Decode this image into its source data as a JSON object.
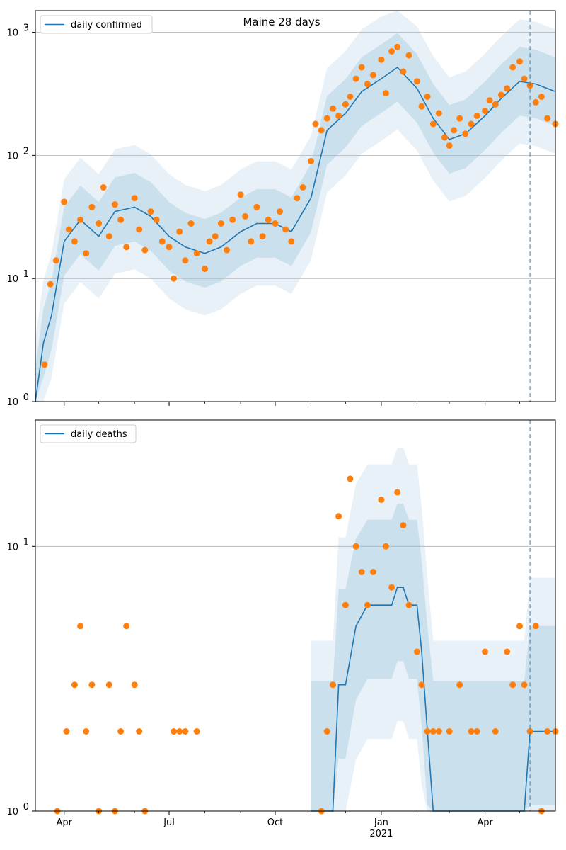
{
  "colors": {
    "line": "#1f77b4",
    "points": "#ff7f0e",
    "band": "#1f77b4",
    "grid": "#b0b0b0",
    "marker_line": "#1f77b4"
  },
  "title": "Maine 28 days",
  "chart_data": [
    {
      "type": "line",
      "yscale": "log",
      "ylim": [
        1,
        1500
      ],
      "x_range": [
        "2020-03-07",
        "2021-06-01"
      ],
      "y_ticks": [
        {
          "value": 1,
          "base": "10",
          "exp": "0"
        },
        {
          "value": 10,
          "base": "10",
          "exp": "1"
        },
        {
          "value": 100,
          "base": "10",
          "exp": "2"
        },
        {
          "value": 1000,
          "base": "10",
          "exp": "3"
        }
      ],
      "x_ticks": [],
      "grid": "y-major",
      "legend": {
        "label": "daily confirmed",
        "placement": "top-left"
      },
      "forecast_date": "2021-05-10",
      "series": [
        {
          "name": "daily confirmed",
          "kind": "line",
          "x": [
            "2020-03-07",
            "2020-03-14",
            "2020-03-21",
            "2020-04-01",
            "2020-04-15",
            "2020-05-01",
            "2020-05-15",
            "2020-06-01",
            "2020-06-15",
            "2020-07-01",
            "2020-07-15",
            "2020-08-01",
            "2020-08-15",
            "2020-09-01",
            "2020-09-15",
            "2020-10-01",
            "2020-10-15",
            "2020-11-01",
            "2020-11-15",
            "2020-12-01",
            "2020-12-15",
            "2021-01-01",
            "2021-01-15",
            "2021-02-01",
            "2021-02-15",
            "2021-03-01",
            "2021-03-15",
            "2021-04-01",
            "2021-04-15",
            "2021-05-01",
            "2021-05-15",
            "2021-06-01"
          ],
          "y": [
            1,
            3,
            5,
            20,
            30,
            22,
            35,
            38,
            32,
            22,
            18,
            16,
            18,
            24,
            28,
            28,
            24,
            45,
            160,
            220,
            330,
            420,
            520,
            350,
            200,
            135,
            150,
            210,
            290,
            400,
            380,
            330
          ]
        },
        {
          "name": "daily confirmed observed",
          "kind": "scatter",
          "x": [
            "2020-03-15",
            "2020-03-20",
            "2020-03-25",
            "2020-04-01",
            "2020-04-05",
            "2020-04-10",
            "2020-04-15",
            "2020-04-20",
            "2020-04-25",
            "2020-05-01",
            "2020-05-05",
            "2020-05-10",
            "2020-05-15",
            "2020-05-20",
            "2020-05-25",
            "2020-06-01",
            "2020-06-05",
            "2020-06-10",
            "2020-06-15",
            "2020-06-20",
            "2020-06-25",
            "2020-07-01",
            "2020-07-05",
            "2020-07-10",
            "2020-07-15",
            "2020-07-20",
            "2020-07-25",
            "2020-08-01",
            "2020-08-05",
            "2020-08-10",
            "2020-08-15",
            "2020-08-20",
            "2020-08-25",
            "2020-09-01",
            "2020-09-05",
            "2020-09-10",
            "2020-09-15",
            "2020-09-20",
            "2020-09-25",
            "2020-10-01",
            "2020-10-05",
            "2020-10-10",
            "2020-10-15",
            "2020-10-20",
            "2020-10-25",
            "2020-11-01",
            "2020-11-05",
            "2020-11-10",
            "2020-11-15",
            "2020-11-20",
            "2020-11-25",
            "2020-12-01",
            "2020-12-05",
            "2020-12-10",
            "2020-12-15",
            "2020-12-20",
            "2020-12-25",
            "2021-01-01",
            "2021-01-05",
            "2021-01-10",
            "2021-01-15",
            "2021-01-20",
            "2021-01-25",
            "2021-02-01",
            "2021-02-05",
            "2021-02-10",
            "2021-02-15",
            "2021-02-20",
            "2021-02-25",
            "2021-03-01",
            "2021-03-05",
            "2021-03-10",
            "2021-03-15",
            "2021-03-20",
            "2021-03-25",
            "2021-04-01",
            "2021-04-05",
            "2021-04-10",
            "2021-04-15",
            "2021-04-20",
            "2021-04-25",
            "2021-05-01",
            "2021-05-05",
            "2021-05-10",
            "2021-05-15",
            "2021-05-20",
            "2021-05-25",
            "2021-06-01"
          ],
          "y": [
            2,
            9,
            14,
            42,
            25,
            20,
            30,
            16,
            38,
            28,
            55,
            22,
            40,
            30,
            18,
            45,
            25,
            17,
            35,
            30,
            20,
            18,
            10,
            24,
            14,
            28,
            16,
            12,
            20,
            22,
            28,
            17,
            30,
            48,
            32,
            20,
            38,
            22,
            30,
            28,
            35,
            25,
            20,
            45,
            55,
            90,
            180,
            160,
            200,
            240,
            210,
            260,
            300,
            420,
            520,
            380,
            450,
            600,
            320,
            700,
            760,
            480,
            650,
            400,
            250,
            300,
            180,
            220,
            140,
            120,
            160,
            200,
            150,
            180,
            210,
            230,
            280,
            260,
            310,
            350,
            520,
            580,
            420,
            370,
            270,
            300,
            200,
            180
          ]
        }
      ]
    },
    {
      "type": "line",
      "yscale": "log",
      "ylim": [
        1,
        30
      ],
      "x_range": [
        "2020-03-07",
        "2021-06-01"
      ],
      "y_ticks": [
        {
          "value": 1,
          "base": "10",
          "exp": "0"
        },
        {
          "value": 10,
          "base": "10",
          "exp": "1"
        }
      ],
      "x_ticks": [
        {
          "date": "2020-04-01",
          "label": "Apr",
          "sub": ""
        },
        {
          "date": "2020-07-01",
          "label": "Jul",
          "sub": ""
        },
        {
          "date": "2020-10-01",
          "label": "Oct",
          "sub": ""
        },
        {
          "date": "2021-01-01",
          "label": "Jan",
          "sub": "2021"
        },
        {
          "date": "2021-04-01",
          "label": "Apr",
          "sub": ""
        }
      ],
      "grid": "y-major",
      "legend": {
        "label": "daily deaths",
        "placement": "top-left"
      },
      "forecast_date": "2021-05-10",
      "series": [
        {
          "name": "daily deaths",
          "kind": "line",
          "x": [
            "2020-11-01",
            "2020-11-10",
            "2020-11-20",
            "2020-11-25",
            "2020-12-01",
            "2020-12-10",
            "2020-12-20",
            "2020-12-30",
            "2021-01-05",
            "2021-01-10",
            "2021-01-15",
            "2021-01-20",
            "2021-01-25",
            "2021-02-01",
            "2021-02-05",
            "2021-02-10",
            "2021-02-15",
            "2021-02-20",
            "2021-05-01",
            "2021-05-05",
            "2021-05-10",
            "2021-05-15",
            "2021-05-20",
            "2021-05-25",
            "2021-06-01"
          ],
          "y": [
            1,
            1,
            1,
            3,
            3,
            5,
            6,
            6,
            6,
            6,
            7,
            7,
            6,
            6,
            4,
            2,
            1,
            1,
            1,
            1,
            2,
            2,
            2,
            2,
            2
          ]
        },
        {
          "name": "daily deaths observed",
          "kind": "scatter",
          "x": [
            "2020-03-26",
            "2020-04-03",
            "2020-04-10",
            "2020-04-15",
            "2020-04-20",
            "2020-04-25",
            "2020-05-01",
            "2020-05-10",
            "2020-05-15",
            "2020-05-20",
            "2020-05-25",
            "2020-06-01",
            "2020-06-05",
            "2020-06-10",
            "2020-07-05",
            "2020-07-10",
            "2020-07-15",
            "2020-07-25",
            "2020-11-10",
            "2020-11-15",
            "2020-11-20",
            "2020-11-25",
            "2020-12-01",
            "2020-12-05",
            "2020-12-10",
            "2020-12-15",
            "2020-12-20",
            "2020-12-25",
            "2021-01-01",
            "2021-01-05",
            "2021-01-10",
            "2021-01-15",
            "2021-01-20",
            "2021-01-25",
            "2021-02-01",
            "2021-02-05",
            "2021-02-10",
            "2021-02-15",
            "2021-02-20",
            "2021-03-01",
            "2021-03-10",
            "2021-03-20",
            "2021-03-25",
            "2021-04-01",
            "2021-04-10",
            "2021-04-20",
            "2021-04-25",
            "2021-05-01",
            "2021-05-05",
            "2021-05-10",
            "2021-05-15",
            "2021-05-20",
            "2021-05-25",
            "2021-06-01"
          ],
          "y": [
            1,
            2,
            3,
            5,
            2,
            3,
            1,
            3,
            1,
            2,
            5,
            3,
            2,
            1,
            2,
            2,
            2,
            2,
            1,
            2,
            3,
            13,
            6,
            18,
            10,
            8,
            6,
            8,
            15,
            10,
            7,
            16,
            12,
            6,
            4,
            3,
            2,
            2,
            2,
            2,
            3,
            2,
            2,
            4,
            2,
            4,
            3,
            5,
            3,
            2,
            5,
            1,
            2,
            2
          ]
        }
      ]
    }
  ]
}
